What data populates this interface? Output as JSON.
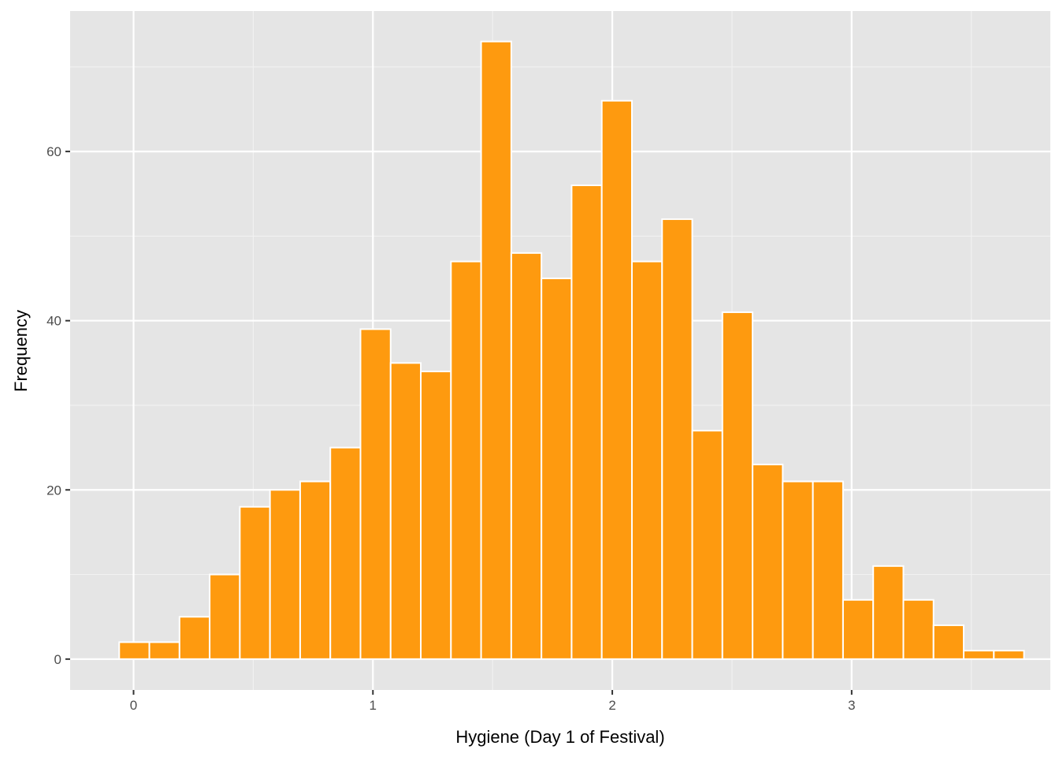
{
  "chart_data": {
    "type": "bar",
    "title": "",
    "xlabel": "Hygiene (Day 1 of Festival)",
    "ylabel": "Frequency",
    "xlim": [
      -0.265,
      3.83
    ],
    "ylim": [
      -3.65,
      76.6
    ],
    "x_ticks": [
      0,
      1,
      2,
      3
    ],
    "x_tick_labels": [
      "0",
      "1",
      "2",
      "3"
    ],
    "y_ticks": [
      0,
      20,
      40,
      60
    ],
    "y_tick_labels": [
      "0",
      "20",
      "40",
      "60"
    ],
    "grid": true,
    "legend": "none",
    "bin_width": 0.126,
    "bins": [
      {
        "x0": -0.06,
        "x1": 0.066,
        "count": 2
      },
      {
        "x0": 0.066,
        "x1": 0.192,
        "count": 2
      },
      {
        "x0": 0.192,
        "x1": 0.318,
        "count": 5
      },
      {
        "x0": 0.318,
        "x1": 0.444,
        "count": 10
      },
      {
        "x0": 0.444,
        "x1": 0.57,
        "count": 18
      },
      {
        "x0": 0.57,
        "x1": 0.696,
        "count": 20
      },
      {
        "x0": 0.696,
        "x1": 0.822,
        "count": 21
      },
      {
        "x0": 0.822,
        "x1": 0.948,
        "count": 25
      },
      {
        "x0": 0.948,
        "x1": 1.074,
        "count": 39
      },
      {
        "x0": 1.074,
        "x1": 1.2,
        "count": 35
      },
      {
        "x0": 1.2,
        "x1": 1.326,
        "count": 34
      },
      {
        "x0": 1.326,
        "x1": 1.452,
        "count": 47
      },
      {
        "x0": 1.452,
        "x1": 1.578,
        "count": 73
      },
      {
        "x0": 1.578,
        "x1": 1.704,
        "count": 48
      },
      {
        "x0": 1.704,
        "x1": 1.83,
        "count": 45
      },
      {
        "x0": 1.83,
        "x1": 1.956,
        "count": 56
      },
      {
        "x0": 1.956,
        "x1": 2.082,
        "count": 66
      },
      {
        "x0": 2.082,
        "x1": 2.208,
        "count": 47
      },
      {
        "x0": 2.208,
        "x1": 2.334,
        "count": 52
      },
      {
        "x0": 2.334,
        "x1": 2.46,
        "count": 27
      },
      {
        "x0": 2.46,
        "x1": 2.586,
        "count": 41
      },
      {
        "x0": 2.586,
        "x1": 2.712,
        "count": 23
      },
      {
        "x0": 2.712,
        "x1": 2.838,
        "count": 21
      },
      {
        "x0": 2.838,
        "x1": 2.964,
        "count": 21
      },
      {
        "x0": 2.964,
        "x1": 3.09,
        "count": 7
      },
      {
        "x0": 3.09,
        "x1": 3.216,
        "count": 11
      },
      {
        "x0": 3.216,
        "x1": 3.342,
        "count": 7
      },
      {
        "x0": 3.342,
        "x1": 3.468,
        "count": 4
      },
      {
        "x0": 3.468,
        "x1": 3.594,
        "count": 1
      },
      {
        "x0": 3.594,
        "x1": 3.72,
        "count": 1
      }
    ],
    "colors": {
      "bar_fill": "#fe9a0f",
      "bar_stroke": "#ffffff",
      "panel_bg": "#e5e5e5",
      "grid_major": "#ffffff",
      "grid_minor": "#f2f2f2",
      "tick_mark": "#333333"
    }
  }
}
